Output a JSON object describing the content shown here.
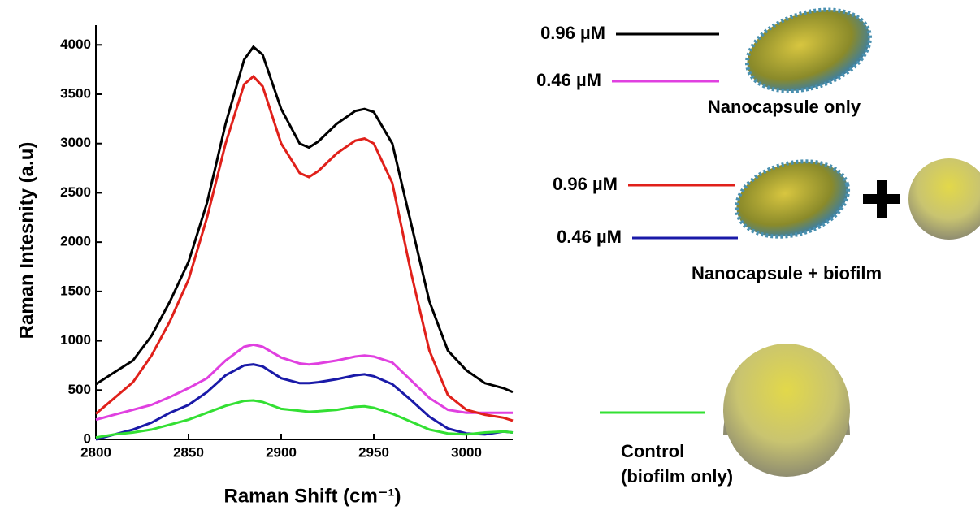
{
  "chart_data": {
    "type": "line",
    "x_label": "Raman Shift (cm⁻¹)",
    "y_label": "Raman Intesnity (a.u)",
    "x": [
      2800,
      2810,
      2820,
      2830,
      2840,
      2850,
      2860,
      2870,
      2880,
      2885,
      2890,
      2900,
      2910,
      2915,
      2920,
      2930,
      2940,
      2945,
      2950,
      2960,
      2970,
      2980,
      2990,
      3000,
      3010,
      3020,
      3025
    ],
    "xlim": [
      2800,
      3025
    ],
    "xticks": [
      2800,
      2850,
      2900,
      2950,
      3000
    ],
    "ylim": [
      0,
      4200
    ],
    "yticks": [
      0,
      500,
      1000,
      1500,
      2000,
      2500,
      3000,
      3500,
      4000
    ],
    "series": [
      {
        "name": "0.96 µM",
        "color": "#000000",
        "values": [
          560,
          680,
          800,
          1050,
          1400,
          1800,
          2400,
          3200,
          3850,
          3980,
          3900,
          3350,
          3000,
          2960,
          3020,
          3200,
          3330,
          3350,
          3320,
          3000,
          2200,
          1400,
          900,
          700,
          570,
          520,
          480
        ]
      },
      {
        "name": "0.46 µM",
        "color": "#e040e0",
        "values": [
          200,
          250,
          300,
          350,
          430,
          520,
          620,
          800,
          940,
          960,
          940,
          830,
          770,
          760,
          770,
          800,
          840,
          850,
          840,
          780,
          600,
          420,
          300,
          270,
          270,
          270,
          270
        ]
      },
      {
        "name": "0.96 µM",
        "color": "#e0201a",
        "values": [
          260,
          420,
          580,
          850,
          1200,
          1620,
          2250,
          3000,
          3600,
          3680,
          3580,
          3000,
          2700,
          2660,
          2720,
          2900,
          3030,
          3050,
          3000,
          2600,
          1700,
          900,
          450,
          300,
          250,
          220,
          190
        ]
      },
      {
        "name": "0.46 µM",
        "color": "#1a1aa8",
        "values": [
          0,
          50,
          100,
          170,
          270,
          350,
          480,
          650,
          750,
          760,
          740,
          620,
          570,
          570,
          580,
          610,
          650,
          660,
          640,
          560,
          400,
          230,
          110,
          60,
          50,
          80,
          70
        ]
      },
      {
        "name": "Control (biofilm only)",
        "color": "#33e033",
        "values": [
          20,
          50,
          70,
          100,
          150,
          200,
          270,
          340,
          390,
          395,
          380,
          310,
          290,
          280,
          285,
          300,
          330,
          335,
          320,
          260,
          180,
          100,
          60,
          50,
          70,
          80,
          70
        ]
      }
    ],
    "annotations": [
      "Nanocapsule only",
      "Nanocapsule + biofilm"
    ]
  }
}
